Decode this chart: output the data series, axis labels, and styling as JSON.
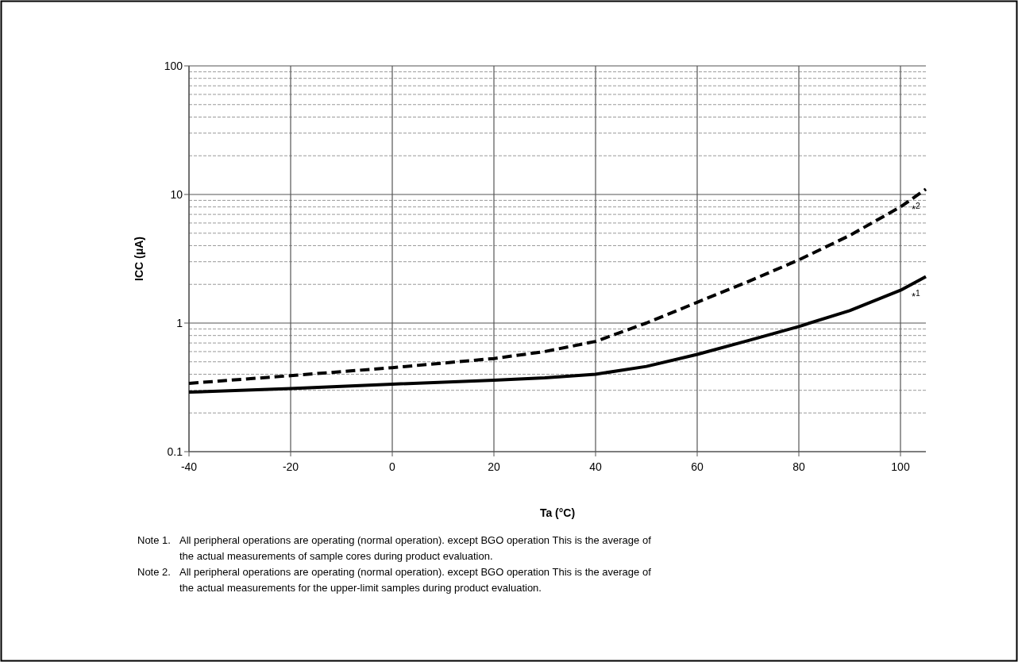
{
  "chart_data": {
    "type": "line",
    "xlabel": "Ta (°C)",
    "ylabel": "ICC (μA)",
    "x": [
      -40,
      -20,
      0,
      20,
      30,
      40,
      50,
      60,
      70,
      80,
      90,
      100,
      105
    ],
    "series": [
      {
        "color": "#000000",
        "line_style": "solid",
        "values": [
          0.29,
          0.31,
          0.335,
          0.36,
          0.375,
          0.4,
          0.46,
          0.57,
          0.73,
          0.94,
          1.25,
          1.8,
          2.3
        ]
      },
      {
        "color": "#000000",
        "line_style": "dashed",
        "values": [
          0.34,
          0.39,
          0.45,
          0.53,
          0.6,
          0.72,
          1.0,
          1.45,
          2.1,
          3.1,
          4.8,
          8.0,
          11
        ]
      }
    ],
    "xlim": [
      -40,
      105
    ],
    "xticks": [
      -40,
      -20,
      0,
      20,
      40,
      60,
      80,
      100
    ],
    "ylim": [
      0.1,
      100
    ],
    "yticks": [
      0.1,
      1,
      10,
      100
    ],
    "log": "y",
    "grid": true,
    "marker": "none",
    "annotations": [
      "*$^{1}$",
      "*$^{2}$",
      "Note 1.   All peripheral operations are operating (normal operation). except BGO operation This is the average of the actual measurements of sample cores during product evaluation.",
      "Note 2.    All peripheral operations are operating (normal operation). except BGO operation This is the average of the actual measurements for the upper-limit samples during product evaluation."
    ]
  }
}
